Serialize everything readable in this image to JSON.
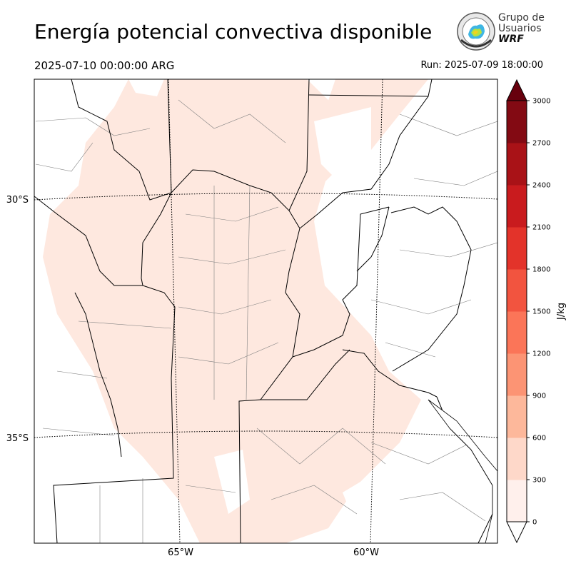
{
  "header": {
    "title": "Energía potencial convectiva disponible",
    "valid_time": "2025-07-10 00:00:00 ARG",
    "run_time": "Run: 2025-07-09 18:00:00"
  },
  "logo": {
    "line1": "Grupo de",
    "line2": "Usuarios",
    "line3": "WRF",
    "icon": "wrf-users-group-seal-logo"
  },
  "map": {
    "lat_labels": [
      "30°S",
      "35°S"
    ],
    "lon_labels": [
      "65°W",
      "60°W"
    ],
    "field_color": "#fee8df",
    "border_color": "#000000",
    "department_color": "#808080"
  },
  "colorbar": {
    "label": "J/kg",
    "ticks": [
      "0",
      "300",
      "600",
      "900",
      "1200",
      "1500",
      "1800",
      "2100",
      "2400",
      "2700",
      "3000"
    ],
    "colors": [
      "#fff0ec",
      "#fed8c9",
      "#fdb89b",
      "#fc9474",
      "#fb7558",
      "#f2543f",
      "#e3332a",
      "#c91b1e",
      "#a91217",
      "#830a13"
    ],
    "over_color": "#67000d",
    "under_color": "#ffffff"
  }
}
